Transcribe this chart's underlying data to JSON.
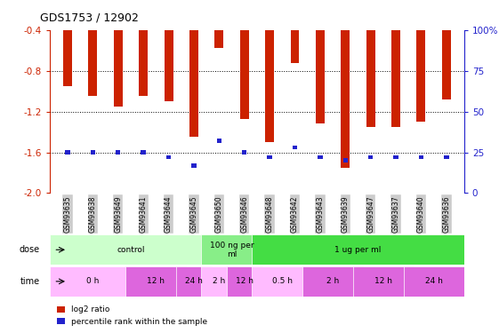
{
  "title": "GDS1753 / 12902",
  "samples": [
    "GSM93635",
    "GSM93638",
    "GSM93649",
    "GSM93641",
    "GSM93644",
    "GSM93645",
    "GSM93650",
    "GSM93646",
    "GSM93648",
    "GSM93642",
    "GSM93643",
    "GSM93639",
    "GSM93647",
    "GSM93637",
    "GSM93640",
    "GSM93636"
  ],
  "log2_ratio": [
    -0.95,
    -1.05,
    -1.15,
    -1.05,
    -1.1,
    -1.45,
    -0.58,
    -1.27,
    -1.5,
    -0.72,
    -1.32,
    -1.75,
    -1.35,
    -1.35,
    -1.3,
    -1.08
  ],
  "percentile_rank": [
    25,
    25,
    25,
    25,
    22,
    17,
    32,
    25,
    22,
    28,
    22,
    20,
    22,
    22,
    22,
    22
  ],
  "ylim_left": [
    -2.0,
    -0.4
  ],
  "ylim_right": [
    0,
    100
  ],
  "yticks_left": [
    -2.0,
    -1.6,
    -1.2,
    -0.8,
    -0.4
  ],
  "yticks_right": [
    0,
    25,
    50,
    75,
    100
  ],
  "bar_color": "#cc2200",
  "percentile_color": "#2222cc",
  "grid_color": "#000000",
  "dose_groups": [
    {
      "label": "control",
      "start": 0,
      "end": 6,
      "color": "#ccffcc"
    },
    {
      "label": "100 ng per\nml",
      "start": 6,
      "end": 8,
      "color": "#88ee88"
    },
    {
      "label": "1 ug per ml",
      "start": 8,
      "end": 16,
      "color": "#44dd44"
    }
  ],
  "time_groups": [
    {
      "label": "0 h",
      "start": 0,
      "end": 3,
      "color": "#ffbbff"
    },
    {
      "label": "12 h",
      "start": 3,
      "end": 5,
      "color": "#dd66dd"
    },
    {
      "label": "24 h",
      "start": 5,
      "end": 6,
      "color": "#dd66dd"
    },
    {
      "label": "2 h",
      "start": 6,
      "end": 7,
      "color": "#ffbbff"
    },
    {
      "label": "12 h",
      "start": 7,
      "end": 8,
      "color": "#dd66dd"
    },
    {
      "label": "0.5 h",
      "start": 8,
      "end": 10,
      "color": "#ffbbff"
    },
    {
      "label": "2 h",
      "start": 10,
      "end": 12,
      "color": "#dd66dd"
    },
    {
      "label": "12 h",
      "start": 12,
      "end": 14,
      "color": "#dd66dd"
    },
    {
      "label": "24 h",
      "start": 14,
      "end": 16,
      "color": "#dd66dd"
    }
  ],
  "dose_label": "dose",
  "time_label": "time",
  "legend_items": [
    {
      "label": "log2 ratio",
      "color": "#cc2200"
    },
    {
      "label": "percentile rank within the sample",
      "color": "#2222cc"
    }
  ],
  "left_axis_color": "#cc2200",
  "right_axis_color": "#2222cc",
  "bar_width": 0.35,
  "tick_label_bg": "#cccccc"
}
